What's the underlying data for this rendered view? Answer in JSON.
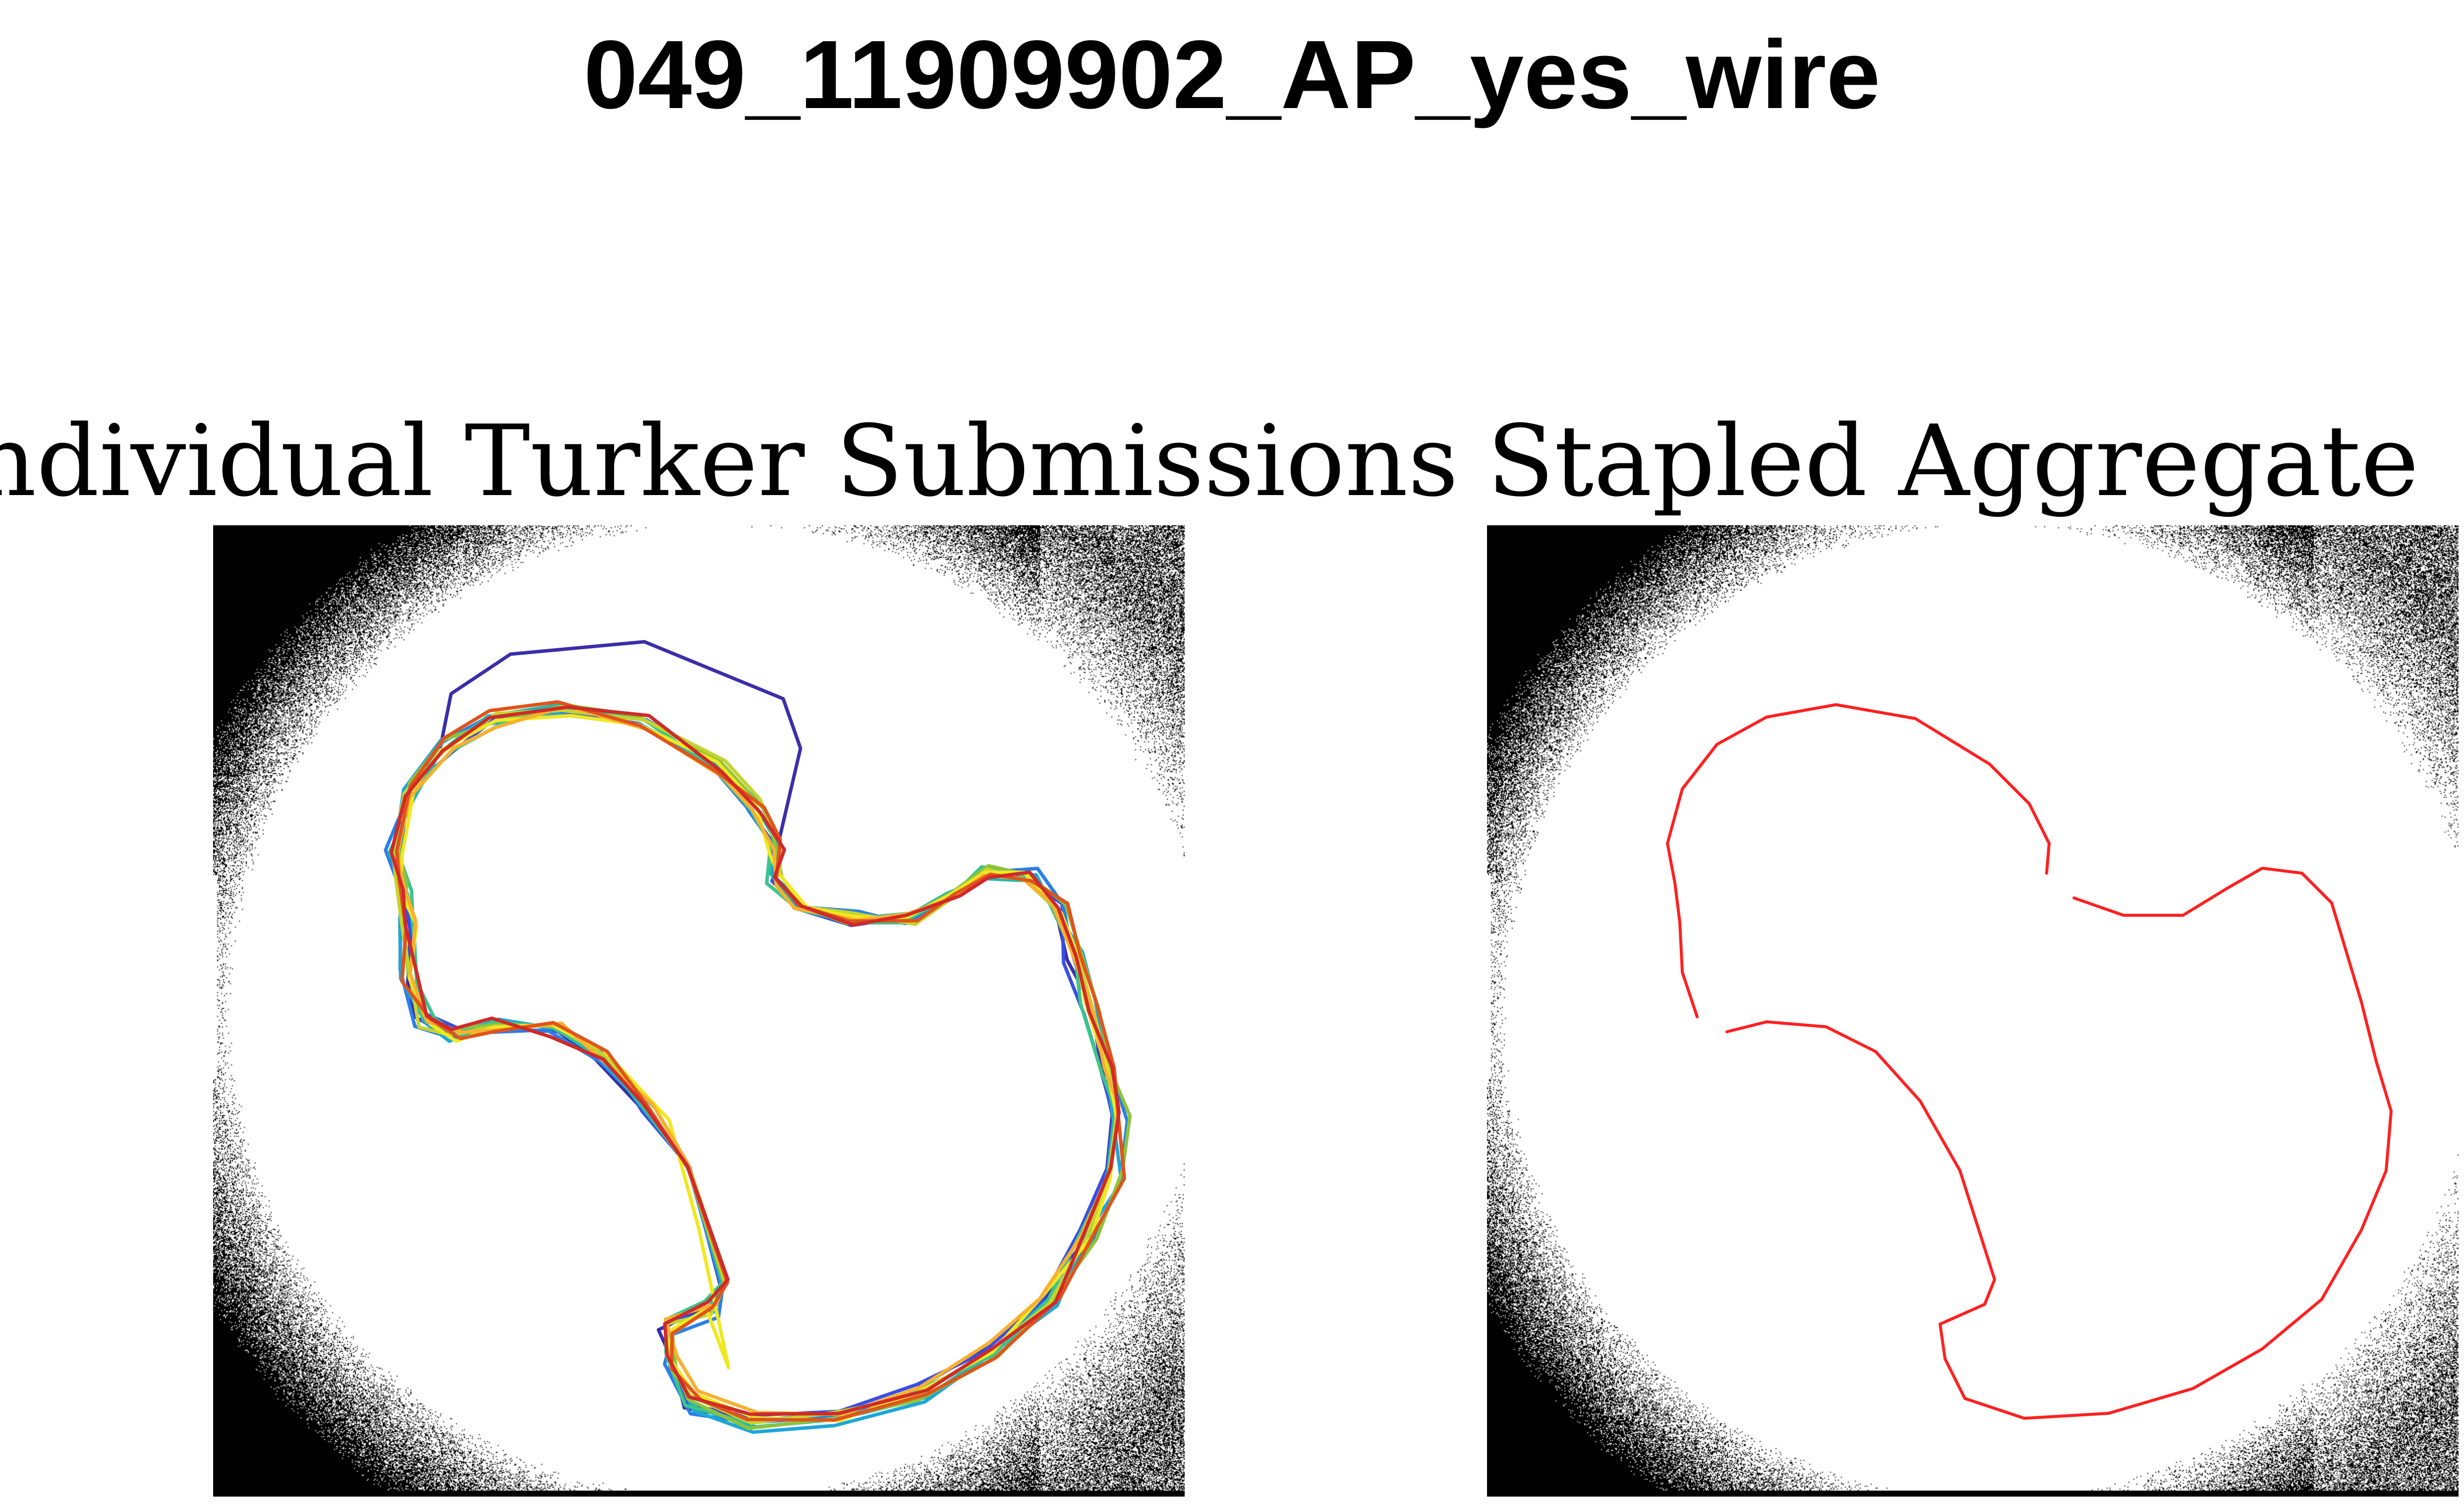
{
  "figure": {
    "title": "049_11909902_AP_yes_wire",
    "panels": [
      {
        "title": "Individual Turker Submissions"
      },
      {
        "title": "Stapled Aggregate"
      }
    ]
  },
  "colors": {
    "background": "#ffffff",
    "noise": "#000000",
    "aggregate": "#ff2020",
    "submissions": [
      "#3a2fa8",
      "#3a4fe0",
      "#2a7fe8",
      "#1fa6d8",
      "#20b8b0",
      "#3cc48c",
      "#8cc43c",
      "#c4d430",
      "#f0e820",
      "#f8b030",
      "#e0541c",
      "#d02a2a"
    ]
  }
}
